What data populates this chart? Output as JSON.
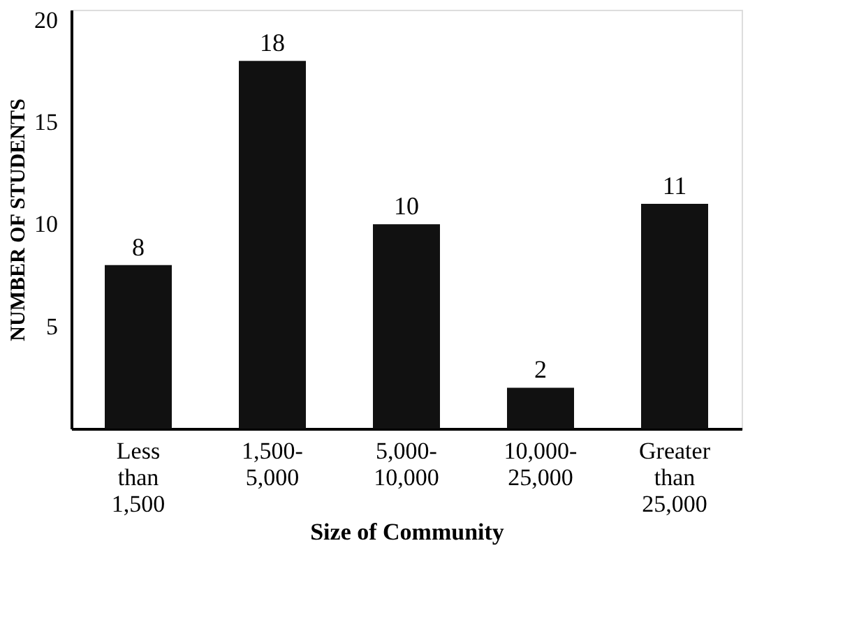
{
  "chart_data": {
    "type": "bar",
    "xlabel": "Size of Community",
    "ylabel": "NUMBER OF STUDENTS",
    "categories": [
      "Less than 1,500",
      "1,500-5,000",
      "5,000-10,000",
      "10,000-25,000",
      "Greater than 25,000"
    ],
    "values": [
      8,
      18,
      10,
      2,
      11
    ],
    "color": "#111111",
    "data_labels": true,
    "ylim": [
      0,
      20.5
    ],
    "yticks": [
      5,
      10,
      15,
      20
    ],
    "grid": false
  }
}
